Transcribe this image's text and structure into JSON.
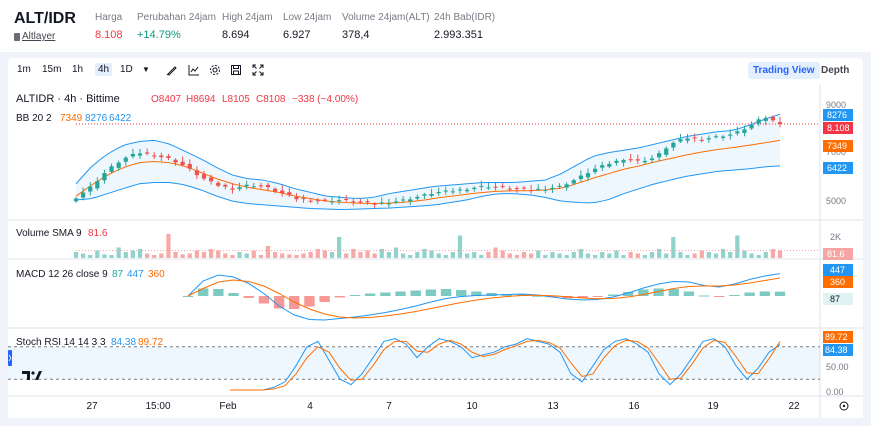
{
  "ticker": {
    "pair": "ALT/IDR",
    "sub_label": "Altlayer",
    "stats": [
      {
        "label": "Harga",
        "value": "8.108",
        "tone": "red"
      },
      {
        "label": "Perubahan 24jam",
        "value": "+14.79%",
        "tone": "green"
      },
      {
        "label": "High 24jam",
        "value": "8.694",
        "tone": "plain"
      },
      {
        "label": "Low 24jam",
        "value": "6.927",
        "tone": "plain"
      },
      {
        "label": "Volume 24jam(ALT)",
        "value": "378,4",
        "tone": "plain"
      },
      {
        "label": "24h Bab(IDR)",
        "value": "2.993.351",
        "tone": "plain"
      }
    ]
  },
  "toolbar": {
    "timeframes": [
      "1m",
      "15m",
      "1h",
      "4h",
      "1D"
    ],
    "active_timeframe": "4h",
    "icons": [
      "chevron-down-icon",
      "draw-icon",
      "indicator-icon",
      "settings-icon",
      "save-icon",
      "fullscreen-icon"
    ],
    "trading_view_label": "Trading View",
    "depth_label": "Depth"
  },
  "colors": {
    "up": "#26a69a",
    "down": "#ef5350",
    "bb_band": "#2196f3",
    "bb_basis": "#ff6d00",
    "macd_line": "#2196f3",
    "signal_line": "#ff6d00",
    "stoch_k": "#2196f3",
    "stoch_d": "#ff6d00",
    "last_price": "#f23645"
  },
  "chart_data": {
    "type": "candlestick",
    "symbol_line": "ALTIDR · 4h · Bittime",
    "ohlc_line": {
      "o": "O8407",
      "h": "H8694",
      "l": "L8105",
      "c": "C8108",
      "chg": "−338 (−4.00%)"
    },
    "price_axis": {
      "ticks": [
        9000,
        8000,
        7000,
        6000,
        5000
      ],
      "range": [
        4400,
        9400
      ]
    },
    "x_ticks": [
      "27",
      "15:00",
      "Feb",
      "4",
      "7",
      "10",
      "13",
      "16",
      "19",
      "22"
    ],
    "close_path": [
      5150,
      5600,
      6250,
      6700,
      6950,
      6850,
      6700,
      6400,
      5950,
      5650,
      5500,
      5650,
      5600,
      5350,
      5100,
      5050,
      5000,
      5050,
      4950,
      4900,
      4950,
      5050,
      5200,
      5350,
      5400,
      5500,
      5600,
      5550,
      5500,
      5450,
      5500,
      5600,
      5900,
      6250,
      6500,
      6700,
      6600,
      6750,
      7300,
      7550,
      7500,
      7600,
      7700,
      8000,
      8400,
      8108
    ],
    "last_price": 8108,
    "bollinger": {
      "label": "BB 20 2",
      "values": [
        "7349",
        "8276",
        "6422"
      ],
      "basis": 7349,
      "upper": 8276,
      "lower": 6422,
      "upper_path": [
        5700,
        6400,
        6900,
        7250,
        7400,
        7450,
        7300,
        7000,
        6700,
        6350,
        6050,
        5900,
        5850,
        5700,
        5500,
        5350,
        5200,
        5150,
        5100,
        5150,
        5300,
        5400,
        5500,
        5600,
        5650,
        5700,
        5750,
        5750,
        5750,
        5800,
        5850,
        6100,
        6450,
        6800,
        6950,
        7050,
        7150,
        7300,
        7450,
        7600,
        7700,
        7800,
        7850,
        8050,
        8300,
        8500
      ],
      "basis_path": [
        5200,
        5650,
        6050,
        6350,
        6550,
        6600,
        6550,
        6400,
        6150,
        5900,
        5700,
        5550,
        5450,
        5350,
        5200,
        5100,
        5000,
        4950,
        4920,
        4900,
        4920,
        4960,
        5020,
        5120,
        5200,
        5280,
        5350,
        5400,
        5420,
        5420,
        5450,
        5520,
        5700,
        5920,
        6100,
        6280,
        6420,
        6580,
        6720,
        6860,
        6980,
        7080,
        7160,
        7250,
        7350,
        7450
      ],
      "lower_path": [
        5050,
        5100,
        5300,
        5500,
        5700,
        5750,
        5750,
        5650,
        5450,
        5200,
        5000,
        4900,
        4850,
        4800,
        4750,
        4700,
        4680,
        4660,
        4680,
        4700,
        4720,
        4760,
        4800,
        4850,
        4950,
        5050,
        5200,
        5300,
        5300,
        5250,
        5150,
        5000,
        4950,
        4920,
        5050,
        5300,
        5500,
        5700,
        5850,
        6000,
        6100,
        6200,
        6250,
        6300,
        6380,
        6422
      ]
    },
    "volume": {
      "label": "Volume SMA 9",
      "value": "81.6",
      "axis_label": "2K",
      "bars": [
        0.2,
        0.15,
        0.1,
        0.25,
        0.12,
        0.1,
        0.35,
        0.2,
        0.25,
        0.3,
        0.15,
        0.1,
        0.15,
        0.8,
        0.2,
        0.12,
        0.15,
        0.25,
        0.2,
        0.3,
        0.25,
        0.15,
        0.1,
        0.2,
        0.15,
        0.25,
        0.1,
        0.4,
        0.2,
        0.15,
        0.12,
        0.1,
        0.15,
        0.2,
        0.3,
        0.25,
        0.2,
        0.7,
        0.15,
        0.3,
        0.2,
        0.25,
        0.15,
        0.3,
        0.2,
        0.35,
        0.15,
        0.1,
        0.2,
        0.3,
        0.25,
        0.15,
        0.1,
        0.2,
        0.75,
        0.15,
        0.2,
        0.1,
        0.2,
        0.35,
        0.25,
        0.15,
        0.1,
        0.2,
        0.15,
        0.25,
        0.1,
        0.2,
        0.15,
        0.1,
        0.2,
        0.3,
        0.15,
        0.1,
        0.2,
        0.15,
        0.25,
        0.1,
        0.2,
        0.15,
        0.1,
        0.2,
        0.3,
        0.15,
        0.7,
        0.2,
        0.1,
        0.15,
        0.25,
        0.2,
        0.15,
        0.3,
        0.2,
        0.75,
        0.25,
        0.15,
        0.1,
        0.2,
        0.3,
        0.25
      ],
      "sma_level": 81.6
    },
    "macd": {
      "label": "MACD 12 26 close 9",
      "values": [
        "87",
        "447",
        "360"
      ],
      "hist_value": 87,
      "macd_value": 447,
      "signal_value": 360,
      "range": [
        -600,
        600
      ],
      "macd_path": [
        0,
        300,
        420,
        380,
        250,
        50,
        -200,
        -380,
        -470,
        -480,
        -450,
        -420,
        -380,
        -330,
        -270,
        -200,
        -120,
        -50,
        -10,
        10,
        20,
        30,
        40,
        20,
        -20,
        -60,
        -80,
        -70,
        -20,
        60,
        160,
        240,
        290,
        280,
        210,
        180,
        240,
        330,
        400,
        447
      ],
      "signal_path": [
        0,
        150,
        280,
        320,
        290,
        200,
        50,
        -120,
        -260,
        -360,
        -420,
        -440,
        -430,
        -400,
        -360,
        -310,
        -250,
        -190,
        -130,
        -80,
        -40,
        -10,
        10,
        15,
        5,
        -15,
        -40,
        -55,
        -50,
        -20,
        30,
        90,
        150,
        190,
        200,
        200,
        220,
        260,
        310,
        360
      ],
      "hist": [
        0,
        150,
        140,
        60,
        -40,
        -150,
        -250,
        -260,
        -210,
        -120,
        -30,
        20,
        50,
        70,
        90,
        110,
        130,
        140,
        120,
        90,
        60,
        40,
        30,
        5,
        -25,
        -45,
        -40,
        -15,
        30,
        80,
        130,
        150,
        140,
        90,
        10,
        -20,
        20,
        70,
        90,
        87
      ]
    },
    "stoch_rsi": {
      "label": "Stoch RSI 14 14 3 3",
      "values": [
        "84.38",
        "89.72"
      ],
      "k_value": 84.38,
      "d_value": 89.72,
      "axis_ticks": [
        50,
        0
      ],
      "axis_tick_labels": [
        "50.00",
        "0.00"
      ],
      "bands": [
        80,
        20
      ],
      "k_path": [
        0,
        0,
        0,
        0,
        5,
        15,
        45,
        80,
        90,
        55,
        20,
        10,
        30,
        60,
        90,
        95,
        85,
        60,
        80,
        95,
        90,
        80,
        60,
        65,
        70,
        80,
        85,
        95,
        90,
        85,
        70,
        30,
        15,
        45,
        75,
        90,
        95,
        85,
        70,
        30,
        10,
        30,
        60,
        90,
        95,
        80,
        45,
        20,
        40,
        70,
        84.38
      ],
      "d_path": [
        0,
        0,
        0,
        0,
        2,
        8,
        30,
        60,
        80,
        70,
        40,
        18,
        20,
        45,
        75,
        90,
        90,
        72,
        70,
        85,
        92,
        85,
        70,
        62,
        66,
        75,
        82,
        90,
        92,
        88,
        78,
        50,
        25,
        30,
        60,
        82,
        92,
        90,
        78,
        50,
        20,
        22,
        48,
        78,
        92,
        88,
        62,
        32,
        30,
        58,
        89.72
      ]
    }
  }
}
